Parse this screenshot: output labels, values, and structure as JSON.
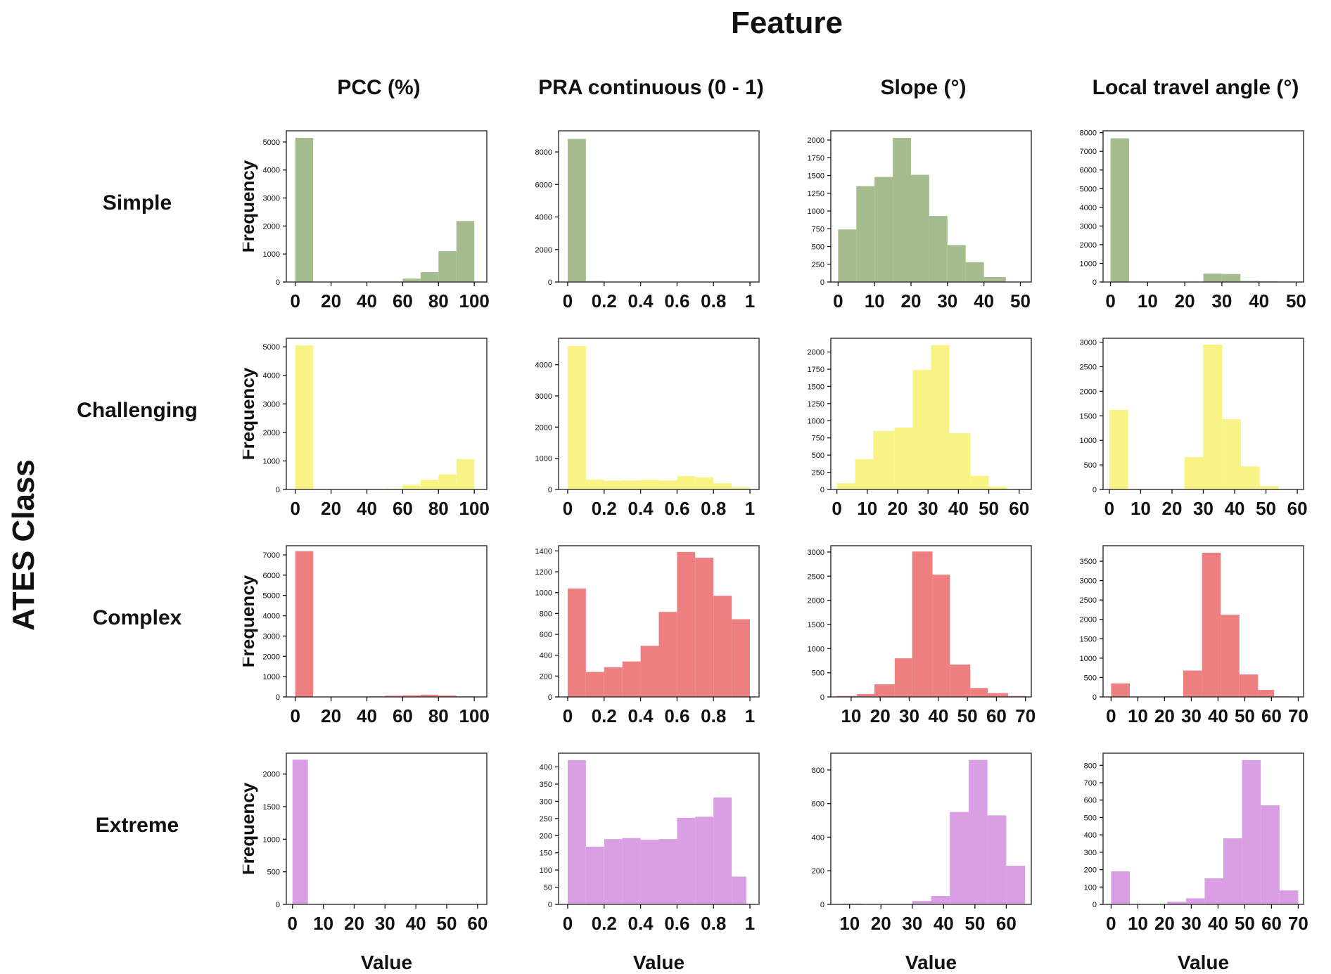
{
  "title": "Feature",
  "row_axis_label": "ATES Class",
  "x_axis_label": "Value",
  "y_axis_label": "Frequency",
  "columns": [
    "PCC (%)",
    "PRA continuous (0 - 1)",
    "Slope (°)",
    "Local travel angle (°)"
  ],
  "rows": [
    "Simple",
    "Challenging",
    "Complex",
    "Extreme"
  ],
  "colors": {
    "Simple": "#a5bd8e",
    "Challenging": "#f9f385",
    "Complex": "#ee7f81",
    "Extreme": "#d99ee4"
  },
  "chart_data": [
    {
      "type": "bar",
      "ates_class": "Simple",
      "feature": "PCC (%)",
      "color": "#a5bd8e",
      "xlim": [
        -5,
        107
      ],
      "ylim": [
        0,
        5400
      ],
      "xticks": [
        0,
        20,
        40,
        60,
        80,
        100
      ],
      "yticks": [
        0,
        1000,
        2000,
        3000,
        4000,
        5000
      ],
      "bars": [
        [
          0,
          10,
          5150
        ],
        [
          60,
          70,
          120
        ],
        [
          70,
          80,
          350
        ],
        [
          80,
          90,
          1100
        ],
        [
          90,
          100,
          2180
        ]
      ]
    },
    {
      "type": "bar",
      "ates_class": "Simple",
      "feature": "PRA continuous (0 - 1)",
      "color": "#a5bd8e",
      "xlim": [
        -0.05,
        1.05
      ],
      "ylim": [
        0,
        9300
      ],
      "xticks": [
        0,
        0.2,
        0.4,
        0.6,
        0.8,
        1
      ],
      "yticks": [
        0,
        2000,
        4000,
        6000,
        8000
      ],
      "bars": [
        [
          0,
          0.1,
          8800
        ],
        [
          0.1,
          0.2,
          60
        ],
        [
          0.2,
          0.3,
          20
        ]
      ]
    },
    {
      "type": "bar",
      "ates_class": "Simple",
      "feature": "Slope (°)",
      "color": "#a5bd8e",
      "xlim": [
        -2,
        53
      ],
      "ylim": [
        0,
        2130
      ],
      "xticks": [
        0,
        10,
        20,
        30,
        40,
        50
      ],
      "yticks": [
        0,
        250,
        500,
        750,
        1000,
        1250,
        1500,
        1750,
        2000
      ],
      "bars": [
        [
          0,
          5,
          740
        ],
        [
          5,
          10,
          1350
        ],
        [
          10,
          15,
          1480
        ],
        [
          15,
          20,
          2030
        ],
        [
          20,
          25,
          1510
        ],
        [
          25,
          30,
          930
        ],
        [
          30,
          35,
          520
        ],
        [
          35,
          40,
          280
        ],
        [
          40,
          46,
          70
        ]
      ]
    },
    {
      "type": "bar",
      "ates_class": "Simple",
      "feature": "Local travel angle (°)",
      "color": "#a5bd8e",
      "xlim": [
        -2,
        52
      ],
      "ylim": [
        0,
        8100
      ],
      "xticks": [
        0,
        10,
        20,
        30,
        40,
        50
      ],
      "yticks": [
        0,
        1000,
        2000,
        3000,
        4000,
        5000,
        6000,
        7000,
        8000
      ],
      "bars": [
        [
          0,
          5,
          7700
        ],
        [
          25,
          30,
          450
        ],
        [
          30,
          35,
          430
        ],
        [
          35,
          40,
          60
        ],
        [
          40,
          45,
          40
        ]
      ]
    },
    {
      "type": "bar",
      "ates_class": "Challenging",
      "feature": "PCC (%)",
      "color": "#f9f385",
      "xlim": [
        -5,
        107
      ],
      "ylim": [
        0,
        5300
      ],
      "xticks": [
        0,
        20,
        40,
        60,
        80,
        100
      ],
      "yticks": [
        0,
        1000,
        2000,
        3000,
        4000,
        5000
      ],
      "bars": [
        [
          0,
          10,
          5050
        ],
        [
          50,
          60,
          30
        ],
        [
          60,
          70,
          160
        ],
        [
          70,
          80,
          340
        ],
        [
          80,
          90,
          530
        ],
        [
          90,
          100,
          1060
        ]
      ]
    },
    {
      "type": "bar",
      "ates_class": "Challenging",
      "feature": "PRA continuous (0 - 1)",
      "color": "#f9f385",
      "xlim": [
        -0.05,
        1.05
      ],
      "ylim": [
        0,
        4850
      ],
      "xticks": [
        0,
        0.2,
        0.4,
        0.6,
        0.8,
        1
      ],
      "yticks": [
        0,
        1000,
        2000,
        3000,
        4000
      ],
      "bars": [
        [
          0,
          0.1,
          4600
        ],
        [
          0.1,
          0.2,
          320
        ],
        [
          0.2,
          0.3,
          280
        ],
        [
          0.3,
          0.4,
          290
        ],
        [
          0.4,
          0.5,
          310
        ],
        [
          0.5,
          0.6,
          290
        ],
        [
          0.6,
          0.7,
          430
        ],
        [
          0.7,
          0.8,
          390
        ],
        [
          0.8,
          0.9,
          200
        ],
        [
          0.9,
          1,
          70
        ]
      ]
    },
    {
      "type": "bar",
      "ates_class": "Challenging",
      "feature": "Slope (°)",
      "color": "#f9f385",
      "xlim": [
        -2,
        64
      ],
      "ylim": [
        0,
        2200
      ],
      "xticks": [
        0,
        10,
        20,
        30,
        40,
        50,
        60
      ],
      "yticks": [
        0,
        250,
        500,
        750,
        1000,
        1250,
        1500,
        1750,
        2000
      ],
      "bars": [
        [
          0,
          6,
          90
        ],
        [
          6,
          12,
          440
        ],
        [
          12,
          19,
          850
        ],
        [
          19,
          25,
          900
        ],
        [
          25,
          31,
          1740
        ],
        [
          31,
          37,
          2100
        ],
        [
          37,
          44,
          820
        ],
        [
          44,
          50,
          200
        ],
        [
          50,
          56,
          40
        ]
      ]
    },
    {
      "type": "bar",
      "ates_class": "Challenging",
      "feature": "Local travel angle (°)",
      "color": "#f9f385",
      "xlim": [
        -2,
        62
      ],
      "ylim": [
        0,
        3080
      ],
      "xticks": [
        0,
        10,
        20,
        30,
        40,
        50,
        60
      ],
      "yticks": [
        0,
        500,
        1000,
        1500,
        2000,
        2500,
        3000
      ],
      "bars": [
        [
          0,
          6,
          1620
        ],
        [
          24,
          30,
          660
        ],
        [
          30,
          36,
          2950
        ],
        [
          36,
          42,
          1430
        ],
        [
          42,
          48,
          470
        ],
        [
          48,
          54,
          70
        ]
      ]
    },
    {
      "type": "bar",
      "ates_class": "Complex",
      "feature": "PCC (%)",
      "color": "#ee7f81",
      "xlim": [
        -5,
        107
      ],
      "ylim": [
        0,
        7450
      ],
      "xticks": [
        0,
        20,
        40,
        60,
        80,
        100
      ],
      "yticks": [
        0,
        1000,
        2000,
        3000,
        4000,
        5000,
        6000,
        7000
      ],
      "bars": [
        [
          0,
          10,
          7180
        ],
        [
          40,
          50,
          30
        ],
        [
          50,
          60,
          60
        ],
        [
          60,
          70,
          80
        ],
        [
          70,
          80,
          110
        ],
        [
          80,
          90,
          70
        ],
        [
          90,
          100,
          30
        ]
      ]
    },
    {
      "type": "bar",
      "ates_class": "Complex",
      "feature": "PRA continuous (0 - 1)",
      "color": "#ee7f81",
      "xlim": [
        -0.05,
        1.05
      ],
      "ylim": [
        0,
        1450
      ],
      "xticks": [
        0,
        0.2,
        0.4,
        0.6,
        0.8,
        1
      ],
      "yticks": [
        0,
        200,
        400,
        600,
        800,
        1000,
        1200,
        1400
      ],
      "bars": [
        [
          0,
          0.1,
          1040
        ],
        [
          0.1,
          0.2,
          240
        ],
        [
          0.2,
          0.3,
          285
        ],
        [
          0.3,
          0.4,
          340
        ],
        [
          0.4,
          0.5,
          490
        ],
        [
          0.5,
          0.6,
          815
        ],
        [
          0.6,
          0.7,
          1390
        ],
        [
          0.7,
          0.8,
          1335
        ],
        [
          0.8,
          0.9,
          970
        ],
        [
          0.9,
          1,
          745
        ]
      ]
    },
    {
      "type": "bar",
      "ates_class": "Complex",
      "feature": "Slope (°)",
      "color": "#ee7f81",
      "xlim": [
        3,
        72
      ],
      "ylim": [
        0,
        3130
      ],
      "xticks": [
        10,
        20,
        30,
        40,
        50,
        60,
        70
      ],
      "yticks": [
        0,
        500,
        1000,
        1500,
        2000,
        2500,
        3000
      ],
      "bars": [
        [
          5,
          12,
          20
        ],
        [
          12,
          18,
          60
        ],
        [
          18,
          25,
          260
        ],
        [
          25,
          31,
          800
        ],
        [
          31,
          38,
          3010
        ],
        [
          38,
          44,
          2530
        ],
        [
          44,
          51,
          670
        ],
        [
          51,
          57,
          185
        ],
        [
          57,
          64,
          80
        ],
        [
          64,
          70,
          20
        ]
      ]
    },
    {
      "type": "bar",
      "ates_class": "Complex",
      "feature": "Local travel angle (°)",
      "color": "#ee7f81",
      "xlim": [
        -3,
        72
      ],
      "ylim": [
        0,
        3900
      ],
      "xticks": [
        0,
        10,
        20,
        30,
        40,
        50,
        60,
        70
      ],
      "yticks": [
        0,
        500,
        1000,
        1500,
        2000,
        2500,
        3000,
        3500
      ],
      "bars": [
        [
          0,
          7,
          350
        ],
        [
          20,
          27,
          15
        ],
        [
          27,
          34,
          680
        ],
        [
          34,
          41,
          3720
        ],
        [
          41,
          48,
          2120
        ],
        [
          48,
          55,
          580
        ],
        [
          55,
          61,
          180
        ],
        [
          61,
          68,
          15
        ]
      ]
    },
    {
      "type": "bar",
      "ates_class": "Extreme",
      "feature": "PCC (%)",
      "color": "#d99ee4",
      "xlim": [
        -2,
        63
      ],
      "ylim": [
        0,
        2320
      ],
      "xticks": [
        0,
        10,
        20,
        30,
        40,
        50,
        60
      ],
      "yticks": [
        0,
        500,
        1000,
        1500,
        2000
      ],
      "bars": [
        [
          0,
          5,
          2220
        ]
      ]
    },
    {
      "type": "bar",
      "ates_class": "Extreme",
      "feature": "PRA continuous (0 - 1)",
      "color": "#d99ee4",
      "xlim": [
        -0.05,
        1.05
      ],
      "ylim": [
        0,
        440
      ],
      "xticks": [
        0,
        0.2,
        0.4,
        0.6,
        0.8,
        1
      ],
      "yticks": [
        0,
        50,
        100,
        150,
        200,
        250,
        300,
        350,
        400
      ],
      "bars": [
        [
          0,
          0.1,
          420
        ],
        [
          0.1,
          0.2,
          168
        ],
        [
          0.2,
          0.3,
          190
        ],
        [
          0.3,
          0.4,
          193
        ],
        [
          0.4,
          0.5,
          188
        ],
        [
          0.5,
          0.6,
          190
        ],
        [
          0.6,
          0.7,
          252
        ],
        [
          0.7,
          0.8,
          255
        ],
        [
          0.8,
          0.9,
          311
        ],
        [
          0.9,
          0.98,
          81
        ]
      ]
    },
    {
      "type": "bar",
      "ates_class": "Extreme",
      "feature": "Slope (°)",
      "color": "#d99ee4",
      "xlim": [
        4,
        68
      ],
      "ylim": [
        0,
        900
      ],
      "xticks": [
        10,
        20,
        30,
        40,
        50,
        60
      ],
      "yticks": [
        0,
        200,
        400,
        600,
        800
      ],
      "bars": [
        [
          8,
          14,
          5
        ],
        [
          30,
          36,
          20
        ],
        [
          36,
          42,
          50
        ],
        [
          42,
          48,
          550
        ],
        [
          48,
          54,
          860
        ],
        [
          54,
          60,
          530
        ],
        [
          60,
          66,
          230
        ]
      ]
    },
    {
      "type": "bar",
      "ates_class": "Extreme",
      "feature": "Local travel angle (°)",
      "color": "#d99ee4",
      "xlim": [
        -3,
        72
      ],
      "ylim": [
        0,
        870
      ],
      "xticks": [
        0,
        10,
        20,
        30,
        40,
        50,
        60,
        70
      ],
      "yticks": [
        0,
        100,
        200,
        300,
        400,
        500,
        600,
        700,
        800
      ],
      "bars": [
        [
          0,
          7,
          190
        ],
        [
          21,
          28,
          15
        ],
        [
          28,
          35,
          35
        ],
        [
          35,
          42,
          150
        ],
        [
          42,
          49,
          380
        ],
        [
          49,
          56,
          830
        ],
        [
          56,
          63,
          570
        ],
        [
          63,
          70,
          80
        ]
      ]
    }
  ]
}
